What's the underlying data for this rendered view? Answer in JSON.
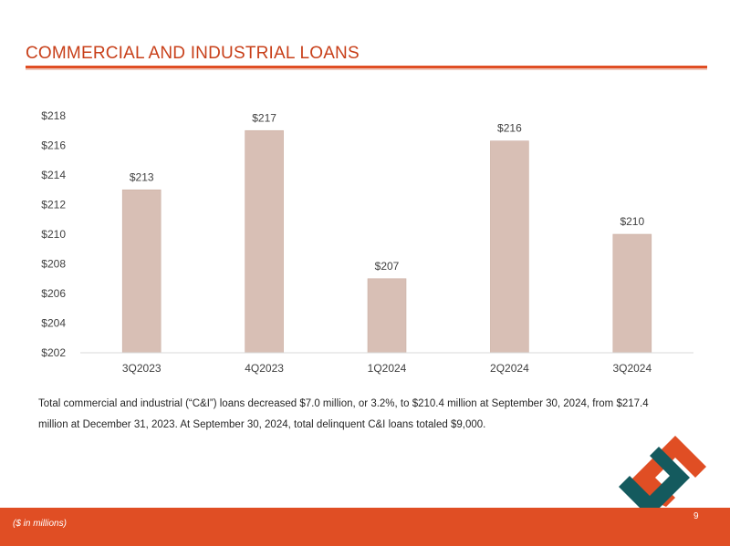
{
  "slide": {
    "title": "COMMERCIAL AND INDUSTRIAL LOANS",
    "note": "Total commercial and industrial (“C&I”) loans decreased $7.0 million, or 3.2%, to $210.4 million at September 30, 2024, from $217.4 million at December 31, 2023. At September 30, 2024, total delinquent C&I loans totaled $9,000.",
    "footnote": "($ in millions)",
    "page_number": "9"
  },
  "colors": {
    "accent": "#E04E24",
    "bar": "#D8BFB5",
    "logo_orange": "#E04E24",
    "logo_teal": "#145A5E"
  },
  "chart_data": {
    "type": "bar",
    "categories": [
      "3Q2023",
      "4Q2023",
      "1Q2024",
      "2Q2024",
      "3Q2024"
    ],
    "values": [
      213,
      217,
      207,
      216.3,
      210
    ],
    "data_labels": [
      "$213",
      "$217",
      "$207",
      "$216",
      "$210"
    ],
    "ylim": [
      202,
      218
    ],
    "yticks": [
      202,
      204,
      206,
      208,
      210,
      212,
      214,
      216,
      218
    ],
    "ytick_labels": [
      "$202",
      "$204",
      "$206",
      "$208",
      "$210",
      "$212",
      "$214",
      "$216",
      "$218"
    ],
    "grid": false,
    "legend": "none"
  }
}
